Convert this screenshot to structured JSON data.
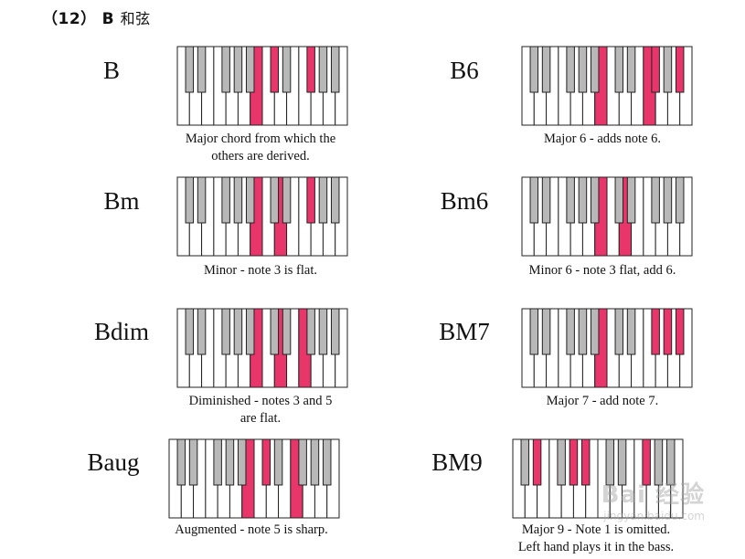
{
  "heading": {
    "number": "（12）",
    "letter": "B",
    "chinese": "和弦"
  },
  "colors": {
    "highlight": "#e8356a",
    "black_key": "#b8b8b8",
    "white_key": "#ffffff",
    "outline": "#222222"
  },
  "chords": [
    {
      "name": "B",
      "caption": "Major chord from which the\nothers are derived."
    },
    {
      "name": "B6",
      "caption": "Major 6 - adds note 6."
    },
    {
      "name": "Bm",
      "caption": "Minor - note 3 is flat."
    },
    {
      "name": "Bm6",
      "caption": "Minor 6 - note 3 flat, add 6."
    },
    {
      "name": "Bdim",
      "caption": "Diminished - notes 3 and 5\nare flat."
    },
    {
      "name": "BM7",
      "caption": "Major 7 - add note 7."
    },
    {
      "name": "Baug",
      "caption": "Augmented - note 5 is sharp."
    },
    {
      "name": "BM9",
      "caption": "Major 9 - Note 1 is omitted.\nLeft hand plays it in the bass."
    }
  ],
  "watermark": {
    "text": "Bai 经验",
    "sub": "jingyan.baidu.com"
  }
}
